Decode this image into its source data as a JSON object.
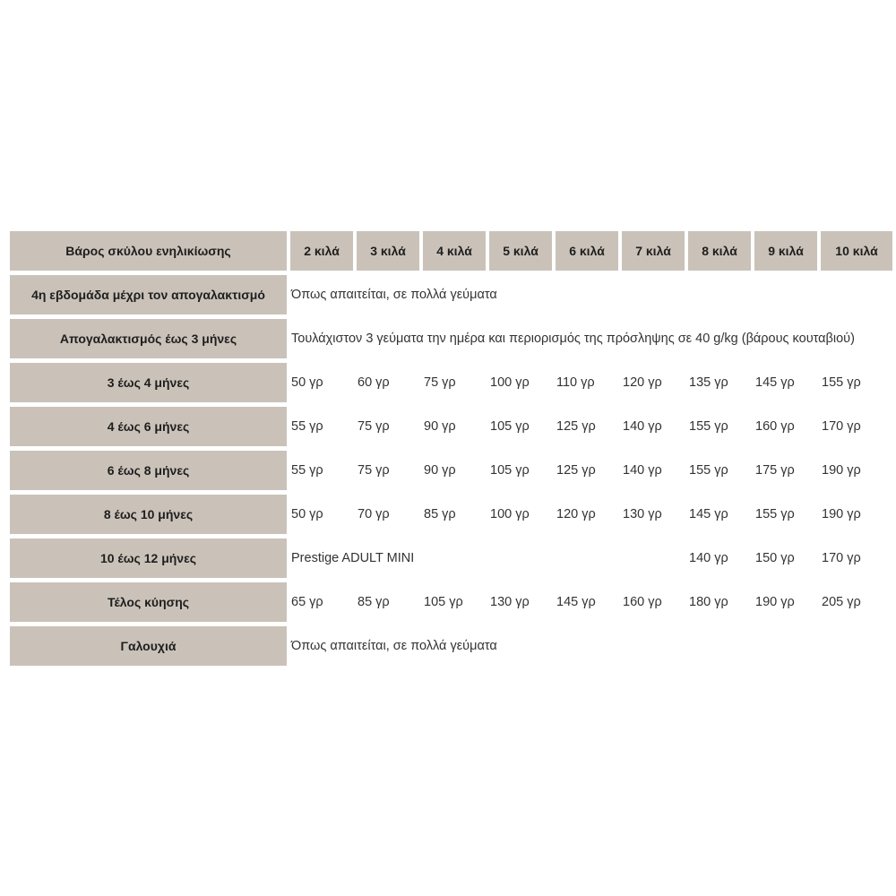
{
  "table": {
    "header": {
      "label": "Βάρος σκύλου ενηλικίωσης",
      "weights": [
        "2 κιλά",
        "3 κιλά",
        "4 κιλά",
        "5 κιλά",
        "6 κιλά",
        "7 κιλά",
        "8 κιλά",
        "9 κιλά",
        "10 κιλά"
      ]
    },
    "rows": [
      {
        "label": "4η εβδομάδα μέχρι τον απογαλακτισμό",
        "note": "Όπως απαιτείται, σε πολλά γεύματα"
      },
      {
        "label": "Απογαλακτισμός έως 3 μήνες",
        "note": "Τουλάχιστον 3 γεύματα την ημέρα και περιορισμός της πρόσληψης σε 40 g/kg (βάρους κουταβιού)"
      },
      {
        "label": "3 έως 4 μήνες",
        "values": [
          "50 γρ",
          "60 γρ",
          "75 γρ",
          "100 γρ",
          "110 γρ",
          "120 γρ",
          "135 γρ",
          "145 γρ",
          "155 γρ"
        ]
      },
      {
        "label": "4 έως 6 μήνες",
        "values": [
          "55 γρ",
          "75 γρ",
          "90 γρ",
          "105 γρ",
          "125 γρ",
          "140 γρ",
          "155 γρ",
          "160 γρ",
          "170 γρ"
        ]
      },
      {
        "label": "6 έως 8 μήνες",
        "values": [
          "55 γρ",
          "75 γρ",
          "90 γρ",
          "105 γρ",
          "125 γρ",
          "140 γρ",
          "155 γρ",
          "175 γρ",
          "190 γρ"
        ]
      },
      {
        "label": "8 έως 10 μήνες",
        "values": [
          "50 γρ",
          "70 γρ",
          "85 γρ",
          "100 γρ",
          "120 γρ",
          "130 γρ",
          "145 γρ",
          "155 γρ",
          "190 γρ"
        ]
      },
      {
        "label": "10 έως 12 μήνες",
        "note": "Prestige ADULT MINI",
        "values": [
          "140 γρ",
          "150 γρ",
          "170 γρ"
        ]
      },
      {
        "label": "Τέλος κύησης",
        "values": [
          "65 γρ",
          "85 γρ",
          "105 γρ",
          "130 γρ",
          "145 γρ",
          "160 γρ",
          "180 γρ",
          "190 γρ",
          "205 γρ"
        ]
      },
      {
        "label": "Γαλουχιά",
        "note": "Όπως απαιτείται, σε πολλά γεύματα"
      }
    ]
  },
  "colors": {
    "header_bg": "#cac2b9"
  }
}
